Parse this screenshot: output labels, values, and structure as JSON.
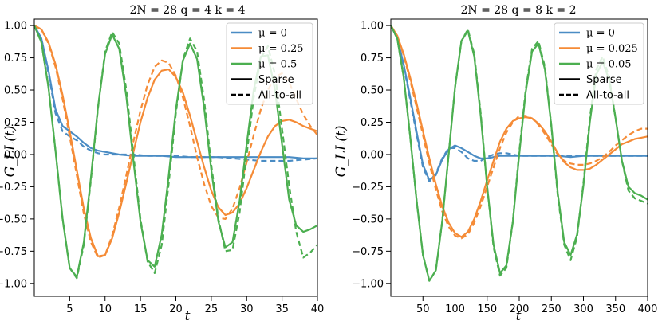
{
  "chart_data": [
    {
      "type": "line",
      "title": "2N = 28      q = 4      k = 4",
      "xlabel": "t",
      "ylabel": "G_LL(t)",
      "xlim": [
        0,
        40
      ],
      "ylim": [
        -1.1,
        1.05
      ],
      "xticks": [
        5,
        10,
        15,
        20,
        25,
        30,
        35,
        40
      ],
      "yticks": [
        -1.0,
        -0.75,
        -0.5,
        -0.25,
        0.0,
        0.25,
        0.5,
        0.75,
        1.0
      ],
      "ytick_labels": [
        "−1.00",
        "−0.75",
        "−0.50",
        "−0.25",
        "0.00",
        "0.25",
        "0.50",
        "0.75",
        "1.00"
      ],
      "legend_position": "top-right",
      "legend": [
        {
          "label": "μ = 0",
          "style": "color",
          "color": "#4a8cc4"
        },
        {
          "label": "μ = 0.25",
          "style": "color",
          "color": "#f58b36"
        },
        {
          "label": "μ = 0.5",
          "style": "color",
          "color": "#4caf50"
        },
        {
          "label": "Sparse",
          "style": "solid",
          "color": "#000000"
        },
        {
          "label": "All-to-all",
          "style": "dashed",
          "color": "#000000"
        }
      ],
      "series": [
        {
          "name": "μ = 0 (Sparse)",
          "color": "#4a8cc4",
          "dash": false,
          "x": [
            0,
            1,
            2,
            3,
            4,
            5,
            6,
            7,
            8,
            9,
            10,
            12,
            14,
            16,
            18,
            20,
            22,
            24,
            26,
            28,
            30,
            32,
            34,
            36,
            38,
            40
          ],
          "y": [
            1.0,
            0.9,
            0.65,
            0.35,
            0.22,
            0.18,
            0.14,
            0.09,
            0.05,
            0.03,
            0.02,
            0.0,
            -0.01,
            -0.01,
            -0.01,
            -0.02,
            -0.02,
            -0.02,
            -0.02,
            -0.02,
            -0.02,
            -0.02,
            -0.02,
            -0.02,
            -0.03,
            -0.03
          ]
        },
        {
          "name": "μ = 0 (All-to-all)",
          "color": "#4a8cc4",
          "dash": true,
          "x": [
            0,
            1,
            2,
            3,
            4,
            5,
            6,
            7,
            8,
            9,
            10,
            12,
            14,
            16,
            18,
            20,
            22,
            24,
            26,
            28,
            30,
            32,
            34,
            36,
            38,
            40
          ],
          "y": [
            1.0,
            0.9,
            0.63,
            0.32,
            0.18,
            0.14,
            0.11,
            0.06,
            0.03,
            0.01,
            0.0,
            0.0,
            0.0,
            -0.01,
            -0.01,
            -0.01,
            -0.02,
            -0.02,
            -0.02,
            -0.03,
            -0.04,
            -0.05,
            -0.05,
            -0.05,
            -0.04,
            -0.03
          ]
        },
        {
          "name": "μ = 0.25 (Sparse)",
          "color": "#f58b36",
          "dash": false,
          "x": [
            0,
            1,
            2,
            3,
            4,
            5,
            6,
            7,
            8,
            9,
            10,
            11,
            12,
            13,
            14,
            15,
            16,
            17,
            18,
            19,
            20,
            21,
            22,
            23,
            24,
            25,
            26,
            27,
            28,
            29,
            30,
            31,
            32,
            33,
            34,
            35,
            36,
            37,
            38,
            39,
            40
          ],
          "y": [
            1.0,
            0.97,
            0.87,
            0.7,
            0.46,
            0.18,
            -0.12,
            -0.42,
            -0.65,
            -0.79,
            -0.78,
            -0.65,
            -0.45,
            -0.22,
            0.02,
            0.25,
            0.44,
            0.58,
            0.65,
            0.66,
            0.6,
            0.48,
            0.3,
            0.1,
            -0.1,
            -0.28,
            -0.41,
            -0.47,
            -0.45,
            -0.38,
            -0.26,
            -0.12,
            0.02,
            0.14,
            0.22,
            0.26,
            0.27,
            0.25,
            0.22,
            0.2,
            0.18
          ]
        },
        {
          "name": "μ = 0.25 (All-to-all)",
          "color": "#f58b36",
          "dash": true,
          "x": [
            0,
            1,
            2,
            3,
            4,
            5,
            6,
            7,
            8,
            9,
            10,
            11,
            12,
            13,
            14,
            15,
            16,
            17,
            18,
            19,
            20,
            21,
            22,
            23,
            24,
            25,
            26,
            27,
            28,
            29,
            30,
            31,
            32,
            33,
            34,
            35,
            36,
            37,
            38,
            39,
            40
          ],
          "y": [
            1.0,
            0.97,
            0.86,
            0.68,
            0.43,
            0.14,
            -0.16,
            -0.46,
            -0.68,
            -0.8,
            -0.78,
            -0.63,
            -0.41,
            -0.16,
            0.1,
            0.34,
            0.54,
            0.68,
            0.73,
            0.71,
            0.61,
            0.44,
            0.22,
            -0.02,
            -0.23,
            -0.4,
            -0.49,
            -0.5,
            -0.42,
            -0.26,
            -0.06,
            0.15,
            0.35,
            0.5,
            0.6,
            0.63,
            0.56,
            0.43,
            0.31,
            0.22,
            0.15
          ]
        },
        {
          "name": "μ = 0.5 (Sparse)",
          "color": "#4caf50",
          "dash": false,
          "x": [
            0,
            1,
            2,
            3,
            4,
            5,
            6,
            7,
            8,
            9,
            10,
            11,
            12,
            13,
            14,
            15,
            16,
            17,
            18,
            19,
            20,
            21,
            22,
            23,
            24,
            25,
            26,
            27,
            28,
            29,
            30,
            31,
            32,
            33,
            34,
            35,
            36,
            37,
            38,
            39,
            40
          ],
          "y": [
            1.0,
            0.87,
            0.52,
            0.03,
            -0.5,
            -0.88,
            -0.95,
            -0.68,
            -0.18,
            0.37,
            0.78,
            0.93,
            0.82,
            0.45,
            -0.05,
            -0.52,
            -0.82,
            -0.87,
            -0.62,
            -0.16,
            0.35,
            0.73,
            0.86,
            0.74,
            0.36,
            -0.12,
            -0.52,
            -0.72,
            -0.68,
            -0.36,
            0.08,
            0.5,
            0.76,
            0.77,
            0.5,
            0.08,
            -0.35,
            -0.55,
            -0.6,
            -0.58,
            -0.55
          ]
        },
        {
          "name": "μ = 0.5 (All-to-all)",
          "color": "#4caf50",
          "dash": true,
          "x": [
            0,
            1,
            2,
            3,
            4,
            5,
            6,
            7,
            8,
            9,
            10,
            11,
            12,
            13,
            14,
            15,
            16,
            17,
            18,
            19,
            20,
            21,
            22,
            23,
            24,
            25,
            26,
            27,
            28,
            29,
            30,
            31,
            32,
            33,
            34,
            35,
            36,
            37,
            38,
            39,
            40
          ],
          "y": [
            1.0,
            0.87,
            0.52,
            0.03,
            -0.5,
            -0.88,
            -0.96,
            -0.7,
            -0.2,
            0.36,
            0.8,
            0.95,
            0.86,
            0.5,
            0.0,
            -0.5,
            -0.83,
            -0.92,
            -0.7,
            -0.22,
            0.32,
            0.74,
            0.9,
            0.8,
            0.42,
            -0.08,
            -0.5,
            -0.75,
            -0.74,
            -0.45,
            0.0,
            0.44,
            0.75,
            0.84,
            0.62,
            0.2,
            -0.24,
            -0.6,
            -0.8,
            -0.76,
            -0.7
          ]
        }
      ]
    },
    {
      "type": "line",
      "title": "2N = 28      q = 8      k = 2",
      "xlabel": "t",
      "ylabel": "G_LL(t)",
      "xlim": [
        0,
        400
      ],
      "ylim": [
        -1.1,
        1.05
      ],
      "xticks": [
        50,
        100,
        150,
        200,
        250,
        300,
        350,
        400
      ],
      "yticks": [
        -1.0,
        -0.75,
        -0.5,
        -0.25,
        0.0,
        0.25,
        0.5,
        0.75,
        1.0
      ],
      "ytick_labels": [
        "−1.00",
        "−0.75",
        "−0.50",
        "−0.25",
        "0.00",
        "0.25",
        "0.50",
        "0.75",
        "1.00"
      ],
      "legend_position": "top-right",
      "legend": [
        {
          "label": "μ = 0",
          "style": "color",
          "color": "#4a8cc4"
        },
        {
          "label": "μ = 0.025",
          "style": "color",
          "color": "#f58b36"
        },
        {
          "label": "μ = 0.05",
          "style": "color",
          "color": "#4caf50"
        },
        {
          "label": "Sparse",
          "style": "solid",
          "color": "#000000"
        },
        {
          "label": "All-to-all",
          "style": "dashed",
          "color": "#000000"
        }
      ],
      "series": [
        {
          "name": "μ = 0 (Sparse)",
          "color": "#4a8cc4",
          "dash": false,
          "x": [
            0,
            10,
            20,
            30,
            40,
            50,
            60,
            70,
            80,
            90,
            100,
            110,
            120,
            130,
            140,
            150,
            160,
            170,
            180,
            190,
            200,
            220,
            240,
            260,
            280,
            300,
            320,
            340,
            360,
            380,
            400
          ],
          "y": [
            1.0,
            0.9,
            0.7,
            0.45,
            0.18,
            -0.08,
            -0.2,
            -0.16,
            -0.04,
            0.04,
            0.07,
            0.05,
            0.02,
            -0.01,
            -0.03,
            -0.03,
            -0.02,
            -0.01,
            -0.01,
            -0.01,
            -0.01,
            -0.01,
            -0.01,
            -0.01,
            -0.02,
            -0.01,
            -0.01,
            -0.01,
            -0.01,
            -0.01,
            -0.01
          ]
        },
        {
          "name": "μ = 0 (All-to-all)",
          "color": "#4a8cc4",
          "dash": true,
          "x": [
            0,
            10,
            20,
            30,
            40,
            50,
            60,
            70,
            80,
            90,
            100,
            110,
            120,
            130,
            140,
            150,
            160,
            170,
            180,
            190,
            200,
            220,
            240,
            260,
            280,
            300,
            320,
            340,
            360,
            380,
            400
          ],
          "y": [
            1.0,
            0.9,
            0.69,
            0.43,
            0.16,
            -0.1,
            -0.21,
            -0.15,
            -0.03,
            0.05,
            0.05,
            0.02,
            -0.03,
            -0.05,
            -0.05,
            -0.02,
            0.0,
            0.01,
            0.01,
            0.0,
            -0.01,
            -0.01,
            -0.01,
            -0.01,
            -0.01,
            -0.01,
            -0.01,
            -0.01,
            -0.01,
            -0.01,
            -0.01
          ]
        },
        {
          "name": "μ = 0.025 (Sparse)",
          "color": "#f58b36",
          "dash": false,
          "x": [
            0,
            10,
            20,
            30,
            40,
            50,
            60,
            70,
            80,
            90,
            100,
            110,
            120,
            130,
            140,
            150,
            160,
            170,
            180,
            190,
            200,
            210,
            220,
            230,
            240,
            250,
            260,
            270,
            280,
            290,
            300,
            310,
            320,
            330,
            340,
            350,
            360,
            370,
            380,
            390,
            400
          ],
          "y": [
            1.0,
            0.92,
            0.78,
            0.6,
            0.4,
            0.18,
            -0.03,
            -0.23,
            -0.4,
            -0.53,
            -0.61,
            -0.64,
            -0.6,
            -0.5,
            -0.36,
            -0.2,
            -0.05,
            0.1,
            0.2,
            0.26,
            0.28,
            0.29,
            0.28,
            0.24,
            0.18,
            0.1,
            0.01,
            -0.06,
            -0.1,
            -0.12,
            -0.12,
            -0.11,
            -0.08,
            -0.04,
            0.0,
            0.04,
            0.08,
            0.1,
            0.12,
            0.13,
            0.14
          ]
        },
        {
          "name": "μ = 0.025 (All-to-all)",
          "color": "#f58b36",
          "dash": true,
          "x": [
            0,
            10,
            20,
            30,
            40,
            50,
            60,
            70,
            80,
            90,
            100,
            110,
            120,
            130,
            140,
            150,
            160,
            170,
            180,
            190,
            200,
            210,
            220,
            230,
            240,
            250,
            260,
            270,
            280,
            290,
            300,
            310,
            320,
            330,
            340,
            350,
            360,
            370,
            380,
            390,
            400
          ],
          "y": [
            1.0,
            0.92,
            0.77,
            0.58,
            0.37,
            0.15,
            -0.07,
            -0.27,
            -0.44,
            -0.56,
            -0.63,
            -0.65,
            -0.62,
            -0.53,
            -0.4,
            -0.25,
            -0.1,
            0.05,
            0.17,
            0.25,
            0.3,
            0.3,
            0.28,
            0.23,
            0.16,
            0.08,
            0.0,
            -0.05,
            -0.07,
            -0.08,
            -0.08,
            -0.07,
            -0.05,
            -0.02,
            0.02,
            0.07,
            0.11,
            0.15,
            0.18,
            0.2,
            0.2
          ]
        },
        {
          "name": "μ = 0.05 (Sparse)",
          "color": "#4caf50",
          "dash": false,
          "x": [
            0,
            10,
            20,
            30,
            40,
            50,
            60,
            70,
            80,
            90,
            100,
            110,
            120,
            130,
            140,
            150,
            160,
            170,
            180,
            190,
            200,
            210,
            220,
            230,
            240,
            250,
            260,
            270,
            280,
            290,
            300,
            310,
            320,
            330,
            340,
            350,
            360,
            370,
            380,
            390,
            400
          ],
          "y": [
            1.0,
            0.9,
            0.6,
            0.15,
            -0.35,
            -0.78,
            -0.98,
            -0.9,
            -0.52,
            0.0,
            0.52,
            0.88,
            0.96,
            0.76,
            0.3,
            -0.25,
            -0.7,
            -0.92,
            -0.86,
            -0.52,
            0.0,
            0.48,
            0.8,
            0.86,
            0.66,
            0.22,
            -0.3,
            -0.68,
            -0.78,
            -0.62,
            -0.24,
            0.25,
            0.62,
            0.72,
            0.58,
            0.28,
            -0.05,
            -0.25,
            -0.3,
            -0.32,
            -0.35
          ]
        },
        {
          "name": "μ = 0.05 (All-to-all)",
          "color": "#4caf50",
          "dash": true,
          "x": [
            0,
            10,
            20,
            30,
            40,
            50,
            60,
            70,
            80,
            90,
            100,
            110,
            120,
            130,
            140,
            150,
            160,
            170,
            180,
            190,
            200,
            210,
            220,
            230,
            240,
            250,
            260,
            270,
            280,
            290,
            300,
            310,
            320,
            330,
            340,
            350,
            360,
            370,
            380,
            390,
            400
          ],
          "y": [
            1.0,
            0.9,
            0.6,
            0.15,
            -0.35,
            -0.78,
            -0.98,
            -0.9,
            -0.52,
            0.0,
            0.52,
            0.88,
            0.97,
            0.78,
            0.32,
            -0.25,
            -0.72,
            -0.94,
            -0.88,
            -0.52,
            0.02,
            0.5,
            0.82,
            0.88,
            0.68,
            0.22,
            -0.32,
            -0.7,
            -0.82,
            -0.64,
            -0.22,
            0.28,
            0.66,
            0.76,
            0.6,
            0.28,
            -0.05,
            -0.28,
            -0.34,
            -0.36,
            -0.38
          ]
        }
      ]
    }
  ]
}
